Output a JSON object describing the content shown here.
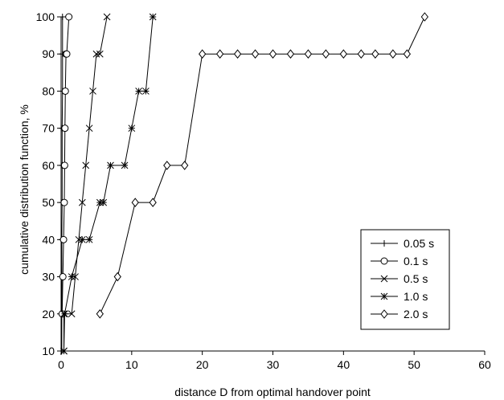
{
  "chart_data": {
    "type": "line",
    "title": "",
    "xlabel": "distance D from optimal handover point",
    "ylabel": "cumulative distribution function, %",
    "xlim": [
      0,
      60
    ],
    "ylim": [
      10,
      100
    ],
    "xticks": [
      "0",
      "10",
      "20",
      "30",
      "40",
      "50",
      "60"
    ],
    "yticks": [
      "10",
      "20",
      "30",
      "40",
      "50",
      "60",
      "70",
      "80",
      "90",
      "100"
    ],
    "grid": false,
    "legend_position": "bottom-right",
    "series": [
      {
        "name": "0.05 s",
        "marker": "plus",
        "x": [
          0.1,
          0.1,
          0.1,
          0.1,
          0.15,
          0.15,
          0.15,
          0.2,
          0.2,
          0.2
        ],
        "y": [
          10,
          20,
          30,
          40,
          50,
          60,
          70,
          80,
          90,
          100
        ]
      },
      {
        "name": "0.1 s",
        "marker": "circle",
        "x": [
          0.15,
          0.25,
          0.35,
          0.45,
          0.5,
          0.55,
          0.6,
          0.7,
          0.8,
          1.1
        ],
        "y": [
          20,
          30,
          40,
          50,
          60,
          70,
          80,
          90,
          90,
          100
        ]
      },
      {
        "name": "0.5 s",
        "marker": "x",
        "x": [
          0.4,
          0.4,
          1.5,
          2.0,
          2.5,
          3.0,
          3.5,
          4.0,
          4.5,
          5.0,
          5.5,
          6.5
        ],
        "y": [
          10,
          20,
          20,
          30,
          40,
          50,
          60,
          70,
          80,
          90,
          90,
          100
        ]
      },
      {
        "name": "1.0 s",
        "marker": "star",
        "x": [
          0.4,
          0.5,
          1.5,
          3.0,
          4.0,
          5.5,
          6.0,
          7.0,
          9.0,
          10.0,
          11.0,
          12.0,
          13.0
        ],
        "y": [
          10,
          20,
          30,
          40,
          40,
          50,
          50,
          60,
          60,
          70,
          80,
          80,
          100
        ]
      },
      {
        "name": "2.0 s",
        "marker": "diamond",
        "x": [
          5.5,
          8.0,
          10.5,
          13.0,
          15.0,
          17.5,
          20.0,
          22.5,
          25.0,
          27.5,
          30.0,
          32.5,
          35.0,
          37.5,
          40.0,
          42.5,
          44.5,
          47.0,
          49.0,
          51.5
        ],
        "y": [
          20,
          30,
          50,
          50,
          60,
          60,
          90,
          90,
          90,
          90,
          90,
          90,
          90,
          90,
          90,
          90,
          90,
          90,
          90,
          100
        ]
      }
    ]
  }
}
